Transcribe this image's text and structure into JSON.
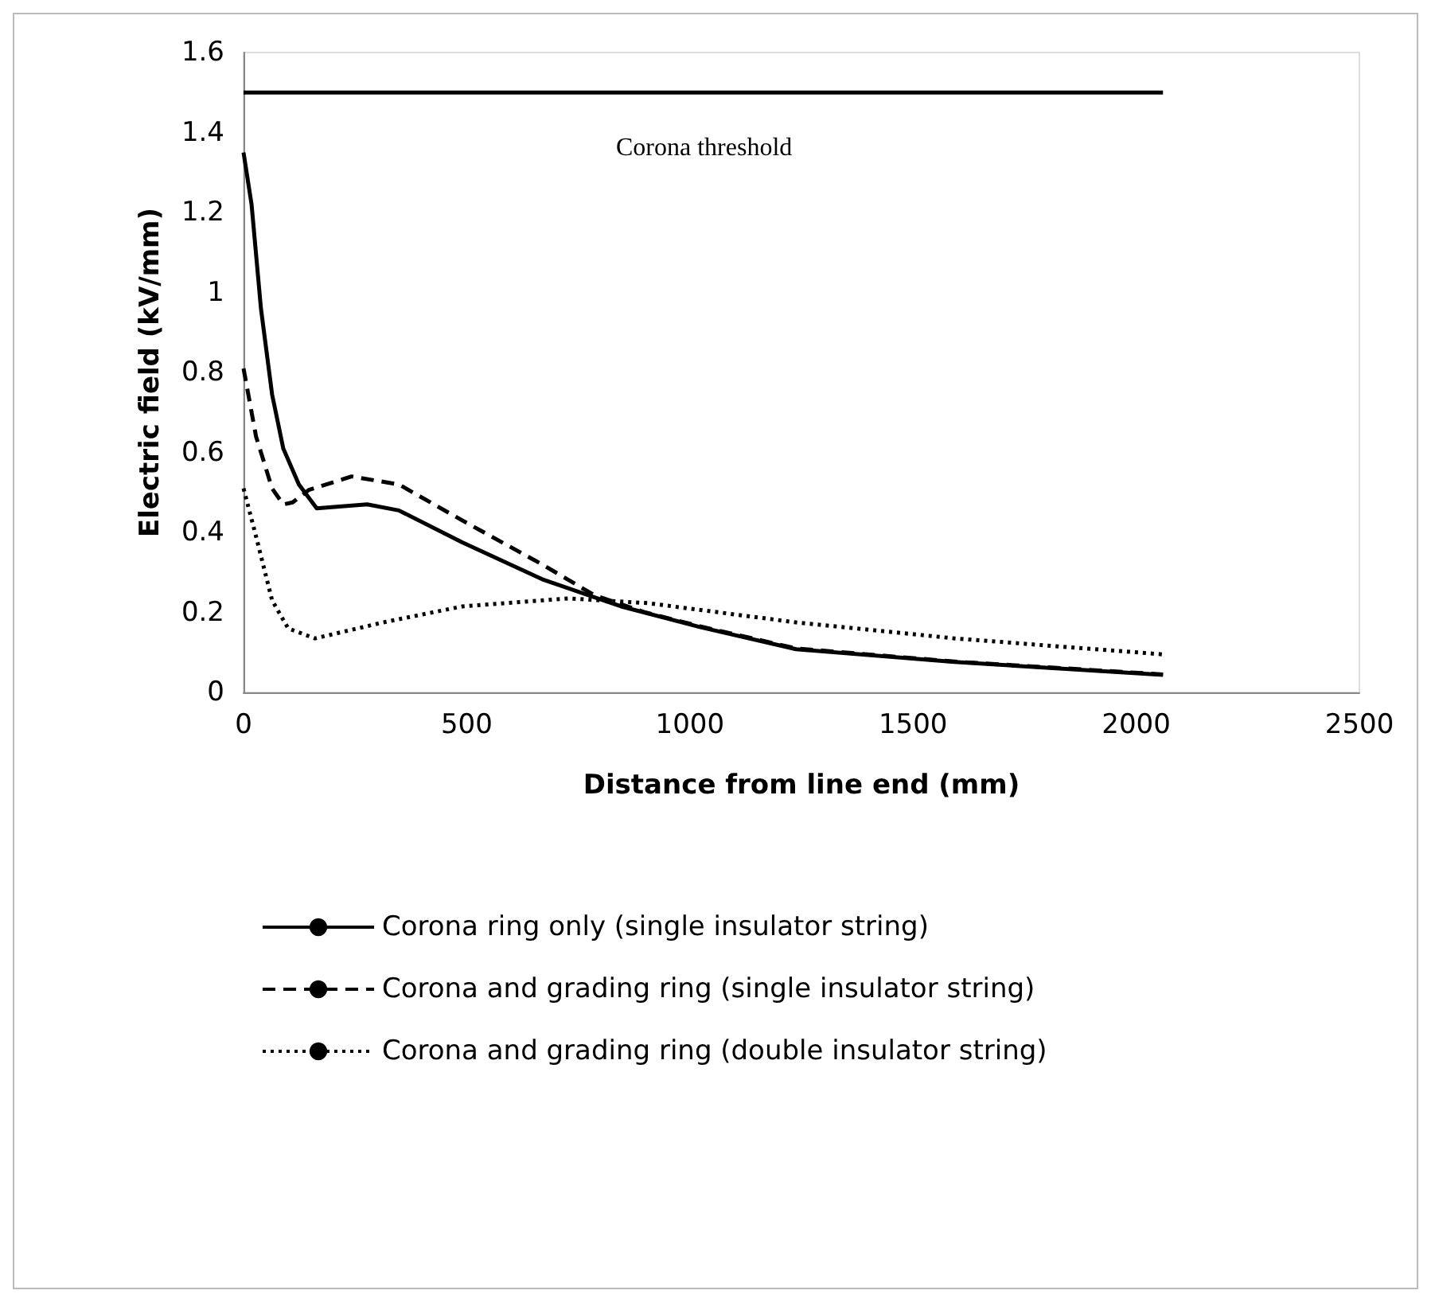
{
  "chart_data": {
    "type": "line",
    "xlabel": "Distance from line end (mm)",
    "ylabel": "Electric field (kV/mm)",
    "xlim": [
      0,
      2500
    ],
    "xticks": [
      0,
      500,
      1000,
      1500,
      2000,
      2500
    ],
    "ylim": [
      0,
      1.6
    ],
    "yticks": [
      0,
      0.2,
      0.4,
      0.6,
      0.8,
      1,
      1.2,
      1.4,
      1.6
    ],
    "grid": false,
    "legend": "bottom",
    "marker": "none",
    "annotations": [
      "Corona threshold"
    ],
    "series": [
      {
        "color": "#000000",
        "line_style": "solid",
        "x": [
          0,
          2060
        ],
        "values": [
          1.5,
          1.5
        ]
      },
      {
        "name": "Corona ring only (single insulator string)",
        "color": "#000000",
        "line_style": "solid",
        "x": [
          0,
          18,
          39,
          64,
          89,
          124,
          164,
          220,
          277,
          348,
          490,
          669,
          846,
          1024,
          1238,
          1593,
          2060
        ],
        "values": [
          1.35,
          1.22,
          0.96,
          0.745,
          0.61,
          0.52,
          0.46,
          0.465,
          0.47,
          0.455,
          0.375,
          0.283,
          0.215,
          0.163,
          0.108,
          0.076,
          0.044
        ]
      },
      {
        "name": "Corona and grading ring (single insulator string)",
        "color": "#000000",
        "line_style": "dashed",
        "x": [
          0,
          28,
          64,
          89,
          110,
          146,
          242,
          348,
          490,
          669,
          786,
          900,
          1024,
          1238,
          1593,
          2060
        ],
        "values": [
          0.81,
          0.64,
          0.51,
          0.47,
          0.475,
          0.506,
          0.54,
          0.52,
          0.43,
          0.32,
          0.243,
          0.2,
          0.165,
          0.11,
          0.077,
          0.045
        ]
      },
      {
        "name": "Corona and grading ring (double insulator string)",
        "color": "#000000",
        "line_style": "dotted",
        "x": [
          0,
          28,
          64,
          100,
          160,
          313,
          490,
          729,
          907,
          1238,
          1593,
          2060
        ],
        "values": [
          0.51,
          0.39,
          0.23,
          0.16,
          0.135,
          0.175,
          0.215,
          0.235,
          0.223,
          0.175,
          0.135,
          0.095
        ]
      }
    ]
  }
}
